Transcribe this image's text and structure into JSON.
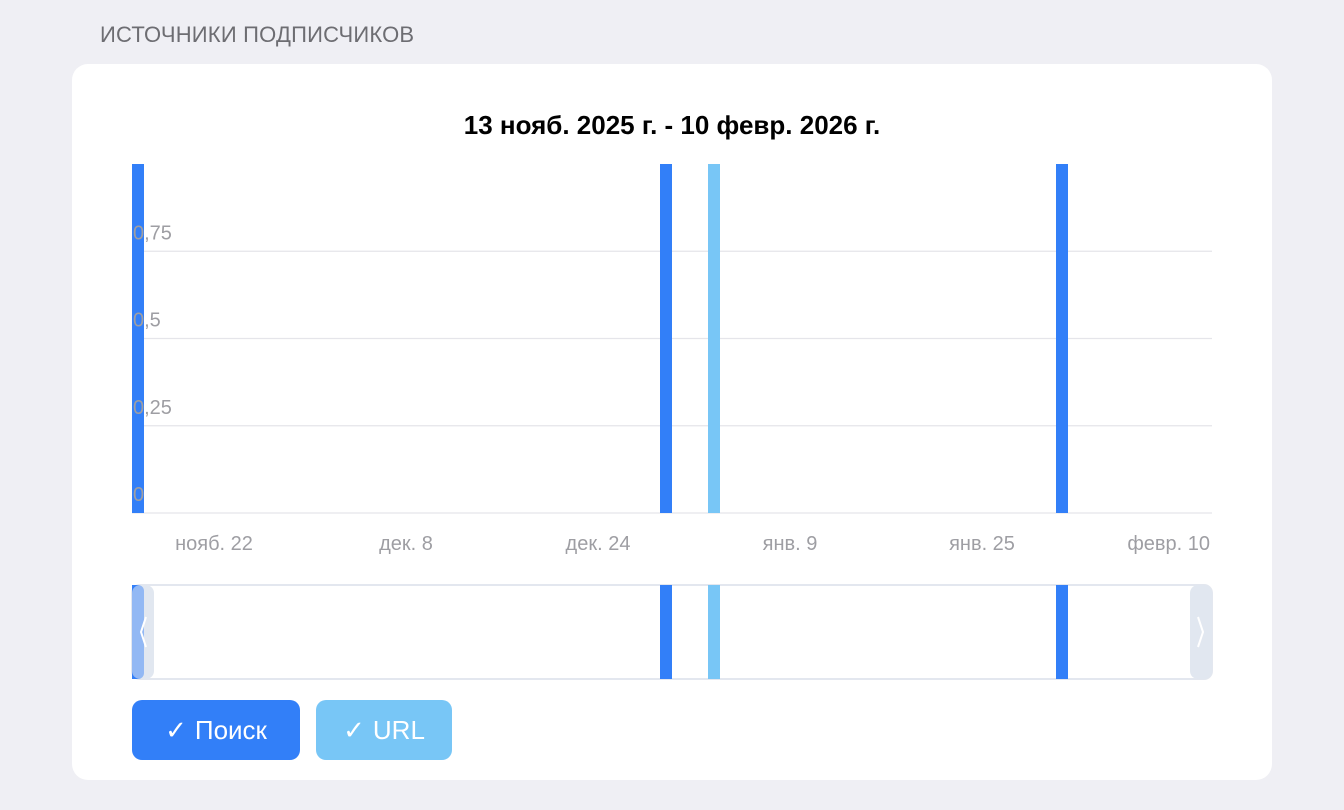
{
  "section_title": "ИСТОЧНИКИ ПОДПИСЧИКОВ",
  "chart_data": {
    "type": "bar",
    "title": "13 нояб. 2025 г. - 10 февр. 2026 г.",
    "x_range": [
      "2025-11-13",
      "2026-02-10"
    ],
    "ylim": [
      0,
      1
    ],
    "y_ticks": [
      0,
      0.25,
      0.5,
      0.75
    ],
    "y_tick_labels": [
      "0",
      "0,25",
      "0,5",
      "0,75"
    ],
    "x_ticks": [
      "2025-11-22",
      "2025-12-08",
      "2025-12-24",
      "2026-01-09",
      "2026-01-25",
      "2026-02-10"
    ],
    "x_tick_labels": [
      "нояб. 22",
      "дек. 8",
      "дек. 24",
      "янв. 9",
      "янв. 25",
      "февр. 10"
    ],
    "grid": true,
    "series": [
      {
        "name": "Поиск",
        "color": "#327ff8",
        "points": [
          {
            "x": "2025-11-13",
            "y": 1
          },
          {
            "x": "2025-12-27",
            "y": 1
          },
          {
            "x": "2026-01-29",
            "y": 1
          }
        ]
      },
      {
        "name": "URL",
        "color": "#78c6f6",
        "points": [
          {
            "x": "2025-12-31",
            "y": 1
          }
        ]
      }
    ]
  },
  "legend": {
    "search": {
      "check": "✓",
      "label": "Поиск"
    },
    "url": {
      "check": "✓",
      "label": "URL"
    }
  }
}
